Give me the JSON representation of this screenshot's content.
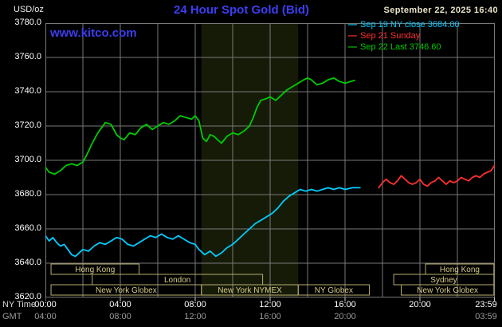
{
  "header": {
    "unit_label": "USD/oz",
    "title": "24 Hour Spot Gold (Bid)",
    "datetime": "September 22, 2025 16:40",
    "watermark": "www.kitco.com"
  },
  "legend": {
    "items": [
      {
        "label": "Sep 19 NY close 3684.00",
        "color": "#00ccff"
      },
      {
        "label": "Sep 21 Sunday",
        "color": "#ff3030"
      },
      {
        "label": "Sep 22 Last 3746.60",
        "color": "#00cc00"
      }
    ]
  },
  "chart_data": {
    "type": "line",
    "title": "24 Hour Spot Gold (Bid)",
    "ylabel": "USD/oz",
    "xlabel": "NY Time (hours)",
    "xlim": [
      0,
      24
    ],
    "ylim": [
      3620,
      3780
    ],
    "grid": true,
    "grid_color": "#787878",
    "band_color": "#161b08",
    "session_color": "#b8ae6e",
    "session_text_color": "#d8cc88",
    "ny_time_label": "NY Time",
    "gmt_label": "GMT",
    "y_ticks": [
      "3780.0",
      "3760.0",
      "3740.0",
      "3720.0",
      "3700.0",
      "3680.0",
      "3660.0",
      "3640.0",
      "3620.0"
    ],
    "x_ticks_ny": [
      {
        "t": 0,
        "label": "00:00"
      },
      {
        "t": 4,
        "label": "04:00"
      },
      {
        "t": 8,
        "label": "08:00"
      },
      {
        "t": 12,
        "label": "12:00"
      },
      {
        "t": 16,
        "label": "16:00"
      },
      {
        "t": 20,
        "label": "20:00"
      },
      {
        "t": 23.98,
        "label": "23:59"
      }
    ],
    "x_ticks_gmt": [
      {
        "t": 0,
        "label": "04:00"
      },
      {
        "t": 4,
        "label": "08:00"
      },
      {
        "t": 8,
        "label": "12:00"
      },
      {
        "t": 12,
        "label": "16:00"
      },
      {
        "t": 16,
        "label": "20:00"
      },
      {
        "t": 23.98,
        "label": "03:59"
      }
    ],
    "nymex_band": [
      8.33,
      13.5
    ],
    "sessions": [
      {
        "row": 0,
        "label": "Hong Kong",
        "t0": 0.3,
        "t1": 5.0
      },
      {
        "row": 0,
        "label": "Hong Kong",
        "t0": 20.3,
        "t1": 23.95
      },
      {
        "row": 1,
        "label": "London",
        "t0": 2.5,
        "t1": 11.6
      },
      {
        "row": 1,
        "label": "Sydney",
        "t0": 18.6,
        "t1": 23.95
      },
      {
        "row": 2,
        "label": "New York Globex",
        "t0": 0.3,
        "t1": 8.33
      },
      {
        "row": 2,
        "label": "New York NYMEX",
        "t0": 8.33,
        "t1": 13.5
      },
      {
        "row": 2,
        "label": "NY Globex",
        "t0": 13.5,
        "t1": 17.3
      },
      {
        "row": 2,
        "label": "New York Globex",
        "t0": 19.0,
        "t1": 23.95
      }
    ],
    "series": [
      {
        "name": "Sep 19 NY close",
        "color": "#00ccff",
        "last": 3684.0,
        "points": [
          [
            0.0,
            3656
          ],
          [
            0.2,
            3653
          ],
          [
            0.4,
            3655
          ],
          [
            0.6,
            3652
          ],
          [
            0.8,
            3650
          ],
          [
            1.0,
            3651
          ],
          [
            1.2,
            3648
          ],
          [
            1.4,
            3645
          ],
          [
            1.6,
            3644
          ],
          [
            1.8,
            3646
          ],
          [
            2.0,
            3648
          ],
          [
            2.3,
            3647
          ],
          [
            2.6,
            3650
          ],
          [
            2.9,
            3652
          ],
          [
            3.2,
            3651
          ],
          [
            3.5,
            3653
          ],
          [
            3.8,
            3655
          ],
          [
            4.1,
            3654
          ],
          [
            4.4,
            3651
          ],
          [
            4.7,
            3650
          ],
          [
            5.0,
            3652
          ],
          [
            5.3,
            3654
          ],
          [
            5.6,
            3656
          ],
          [
            5.9,
            3655
          ],
          [
            6.2,
            3657
          ],
          [
            6.5,
            3655
          ],
          [
            6.8,
            3654
          ],
          [
            7.1,
            3656
          ],
          [
            7.4,
            3654
          ],
          [
            7.7,
            3652
          ],
          [
            8.0,
            3651
          ],
          [
            8.2,
            3648
          ],
          [
            8.5,
            3645
          ],
          [
            8.8,
            3647
          ],
          [
            9.1,
            3644
          ],
          [
            9.4,
            3646
          ],
          [
            9.7,
            3649
          ],
          [
            10.0,
            3651
          ],
          [
            10.3,
            3654
          ],
          [
            10.6,
            3657
          ],
          [
            10.9,
            3660
          ],
          [
            11.2,
            3663
          ],
          [
            11.5,
            3665
          ],
          [
            11.8,
            3667
          ],
          [
            12.1,
            3669
          ],
          [
            12.4,
            3672
          ],
          [
            12.7,
            3676
          ],
          [
            13.0,
            3679
          ],
          [
            13.3,
            3681
          ],
          [
            13.6,
            3683
          ],
          [
            13.9,
            3682
          ],
          [
            14.2,
            3683
          ],
          [
            14.5,
            3682
          ],
          [
            14.8,
            3683
          ],
          [
            15.1,
            3684
          ],
          [
            15.4,
            3683
          ],
          [
            15.7,
            3684
          ],
          [
            16.0,
            3683
          ],
          [
            16.4,
            3684
          ],
          [
            16.8,
            3684
          ]
        ]
      },
      {
        "name": "Sep 21 Sunday",
        "color": "#ff3030",
        "points": [
          [
            17.8,
            3684
          ],
          [
            18.0,
            3687
          ],
          [
            18.2,
            3689
          ],
          [
            18.4,
            3687
          ],
          [
            18.6,
            3686
          ],
          [
            18.8,
            3688
          ],
          [
            19.0,
            3691
          ],
          [
            19.2,
            3689
          ],
          [
            19.4,
            3687
          ],
          [
            19.6,
            3686
          ],
          [
            19.8,
            3687
          ],
          [
            20.0,
            3689
          ],
          [
            20.2,
            3686
          ],
          [
            20.4,
            3685
          ],
          [
            20.6,
            3687
          ],
          [
            20.8,
            3688
          ],
          [
            21.0,
            3690
          ],
          [
            21.2,
            3688
          ],
          [
            21.4,
            3686
          ],
          [
            21.6,
            3688
          ],
          [
            21.8,
            3687
          ],
          [
            22.0,
            3688
          ],
          [
            22.2,
            3690
          ],
          [
            22.4,
            3689
          ],
          [
            22.6,
            3688
          ],
          [
            22.8,
            3690
          ],
          [
            23.0,
            3691
          ],
          [
            23.2,
            3690
          ],
          [
            23.4,
            3692
          ],
          [
            23.6,
            3693
          ],
          [
            23.8,
            3694
          ],
          [
            23.98,
            3697
          ]
        ]
      },
      {
        "name": "Sep 22 Last",
        "color": "#00cc00",
        "last": 3746.6,
        "points": [
          [
            0.0,
            3696
          ],
          [
            0.2,
            3693
          ],
          [
            0.5,
            3692
          ],
          [
            0.8,
            3694
          ],
          [
            1.1,
            3697
          ],
          [
            1.4,
            3698
          ],
          [
            1.7,
            3697
          ],
          [
            2.0,
            3699
          ],
          [
            2.2,
            3703
          ],
          [
            2.5,
            3710
          ],
          [
            2.8,
            3716
          ],
          [
            3.0,
            3719
          ],
          [
            3.2,
            3722
          ],
          [
            3.5,
            3721
          ],
          [
            3.8,
            3715
          ],
          [
            4.0,
            3713
          ],
          [
            4.2,
            3712
          ],
          [
            4.5,
            3716
          ],
          [
            4.8,
            3715
          ],
          [
            5.1,
            3719
          ],
          [
            5.4,
            3721
          ],
          [
            5.7,
            3718
          ],
          [
            6.0,
            3720
          ],
          [
            6.3,
            3722
          ],
          [
            6.6,
            3721
          ],
          [
            6.9,
            3723
          ],
          [
            7.2,
            3726
          ],
          [
            7.5,
            3725
          ],
          [
            7.8,
            3724
          ],
          [
            8.0,
            3726
          ],
          [
            8.2,
            3723
          ],
          [
            8.4,
            3713
          ],
          [
            8.6,
            3711
          ],
          [
            8.8,
            3715
          ],
          [
            9.0,
            3714
          ],
          [
            9.2,
            3712
          ],
          [
            9.4,
            3710
          ],
          [
            9.7,
            3714
          ],
          [
            10.0,
            3716
          ],
          [
            10.3,
            3715
          ],
          [
            10.6,
            3717
          ],
          [
            10.9,
            3720
          ],
          [
            11.1,
            3725
          ],
          [
            11.3,
            3731
          ],
          [
            11.5,
            3735
          ],
          [
            11.8,
            3736
          ],
          [
            12.0,
            3737
          ],
          [
            12.3,
            3735
          ],
          [
            12.6,
            3738
          ],
          [
            12.9,
            3741
          ],
          [
            13.2,
            3743
          ],
          [
            13.5,
            3745
          ],
          [
            13.8,
            3747
          ],
          [
            14.0,
            3748
          ],
          [
            14.2,
            3747
          ],
          [
            14.5,
            3744
          ],
          [
            14.8,
            3745
          ],
          [
            15.1,
            3747
          ],
          [
            15.4,
            3748
          ],
          [
            15.7,
            3746
          ],
          [
            16.0,
            3745
          ],
          [
            16.3,
            3746
          ],
          [
            16.5,
            3746.6
          ]
        ]
      }
    ]
  }
}
